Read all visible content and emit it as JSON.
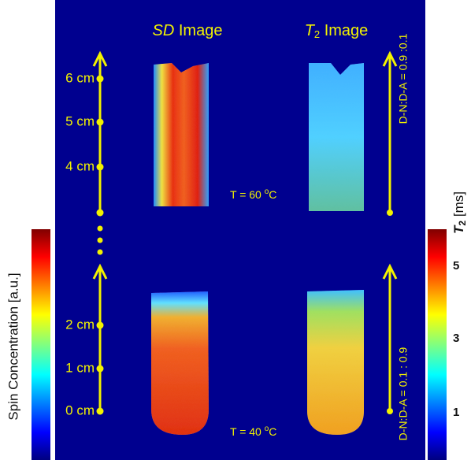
{
  "headers": {
    "sd": {
      "symbol": "SD",
      "text": " Image"
    },
    "t2": {
      "symbol": "T",
      "sub": "2",
      "text": " Image"
    }
  },
  "scale_top": [
    "6 cm",
    "5 cm",
    "4 cm"
  ],
  "scale_bottom": [
    "2 cm",
    "1 cm",
    "0 cm"
  ],
  "temperatures": [
    {
      "prefix": "T = 60 ",
      "sup": "o",
      "unit": "C"
    },
    {
      "prefix": "T = 40 ",
      "sup": "o",
      "unit": "C"
    }
  ],
  "ratios": [
    "D-N:D-A = 0.9 :0.1",
    "D-N:D-A = 0.1 : 0.9"
  ],
  "left_colorbar": {
    "label": "Spin Concentration [a.u.]"
  },
  "right_colorbar": {
    "symbol": "T",
    "sub": "2",
    "unit": " [ms]",
    "ticks": [
      "5",
      "3",
      "1"
    ]
  }
}
